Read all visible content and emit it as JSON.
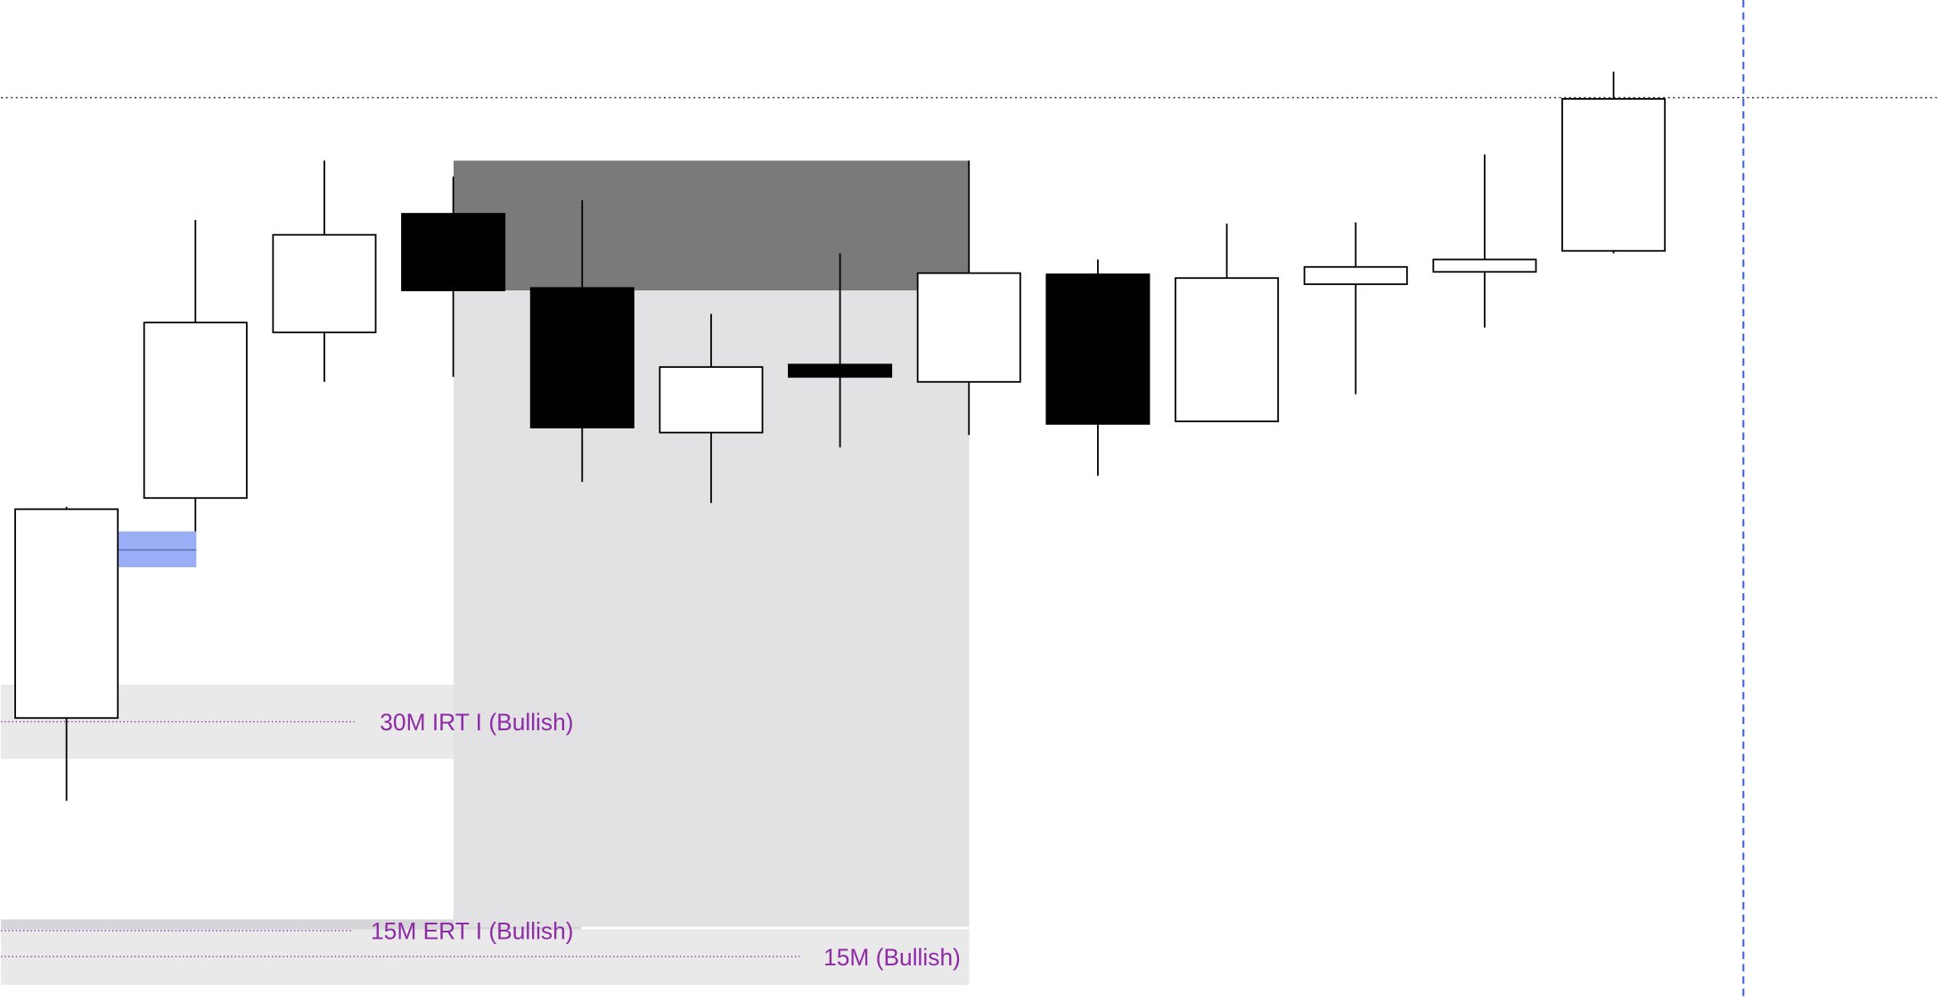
{
  "chart_data": {
    "type": "candlestick",
    "ylim": [
      0,
      810
    ],
    "up_color": "#ffffff",
    "down_color": "#000000",
    "edge_color": "#000000",
    "open": [
      229,
      407,
      541,
      637,
      577,
      460,
      515,
      501,
      588,
      469,
      580,
      590,
      607
    ],
    "high": [
      400,
      632,
      680,
      667,
      648,
      556,
      605,
      680,
      600,
      629,
      630,
      685,
      752
    ],
    "low": [
      162,
      380,
      501,
      505,
      420,
      403,
      448,
      458,
      425,
      469,
      491,
      545,
      605
    ],
    "close": [
      398,
      549,
      620,
      575,
      464,
      513,
      505,
      589,
      467,
      585,
      594,
      600,
      730
    ],
    "annotations": [
      "30M IRT I (Bullish)",
      "15M ERT I (Bullish)",
      "15M (Bullish)"
    ]
  }
}
